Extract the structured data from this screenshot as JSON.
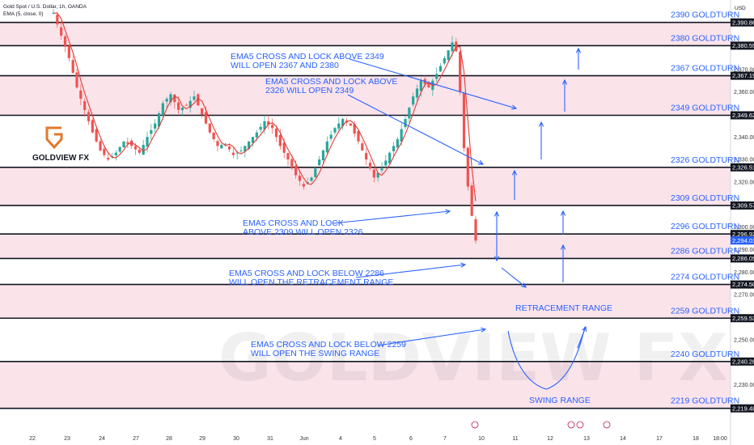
{
  "header": {
    "title": "Gold Spot / U.S. Dollar, 1h, OANDA",
    "indicator": "EMA (5, close, 0)",
    "currency": "USD"
  },
  "logo": {
    "text": "GOLDVIEW FX"
  },
  "watermark": "GOLDVIEW FX",
  "colors": {
    "accent": "#2962ff",
    "zone": "#fbe3ea",
    "ema": "#e53935",
    "candle_up": "#26a69a",
    "candle_down": "#ef5350"
  },
  "chart_data": {
    "type": "candlestick",
    "symbol": "XAUUSD",
    "timeframe": "1h",
    "ylim": [
      2214,
      2394
    ],
    "y_ticks": [
      2230,
      2240,
      2250,
      2260,
      2270,
      2280,
      2290,
      2300,
      2320,
      2330,
      2340,
      2360,
      2370
    ],
    "x_ticks": [
      "22",
      "23",
      "24",
      "27",
      "28",
      "29",
      "30",
      "31",
      "Jun",
      "4",
      "5",
      "6",
      "7",
      "10",
      "11",
      "12",
      "13",
      "14",
      "17",
      "18",
      "18:00"
    ],
    "levels": [
      {
        "price": 2390.864,
        "label": "2390 GOLDTURN",
        "badge": "2,390.864"
      },
      {
        "price": 2380.559,
        "label": "2380 GOLDTURN",
        "badge": "2,380.559"
      },
      {
        "price": 2367.195,
        "label": "2367 GOLDTURN",
        "badge": "2,367.195"
      },
      {
        "price": 2349.627,
        "label": "2349 GOLDTURN",
        "badge": "2,349.627"
      },
      {
        "price": 2326.511,
        "label": "2326 GOLDTURN",
        "badge": "2,326.511"
      },
      {
        "price": 2309.577,
        "label": "2309 GOLDTURN",
        "badge": "2,309.577"
      },
      {
        "price": 2296.922,
        "label": "2296 GOLDTURN",
        "badge": "2,296.922"
      },
      {
        "price": 2286.058,
        "label": "2286 GOLDTURN",
        "badge": "2,286.058"
      },
      {
        "price": 2274.5,
        "label": "2274 GOLDTURN",
        "badge": "2,274.500"
      },
      {
        "price": 2259.537,
        "label": "2259 GOLDTURN",
        "badge": "2,259.537"
      },
      {
        "price": 2240.288,
        "label": "2240 GOLDTURN",
        "badge": "2,240.288"
      },
      {
        "price": 2219.489,
        "label": "2219 GOLDTURN",
        "badge": "2,219.489"
      }
    ],
    "current_price": {
      "value": 2294.015,
      "badge": "2,294.015"
    },
    "price_path": [
      [
        0,
        2395
      ],
      [
        2,
        2385
      ],
      [
        4,
        2375
      ],
      [
        6,
        2362
      ],
      [
        8,
        2352
      ],
      [
        10,
        2342
      ],
      [
        12,
        2334
      ],
      [
        14,
        2330
      ],
      [
        16,
        2333
      ],
      [
        18,
        2338
      ],
      [
        20,
        2336
      ],
      [
        22,
        2333
      ],
      [
        24,
        2340
      ],
      [
        26,
        2346
      ],
      [
        28,
        2355
      ],
      [
        30,
        2359
      ],
      [
        32,
        2352
      ],
      [
        34,
        2354
      ],
      [
        36,
        2358
      ],
      [
        38,
        2350
      ],
      [
        40,
        2342
      ],
      [
        42,
        2336
      ],
      [
        44,
        2337
      ],
      [
        46,
        2332
      ],
      [
        48,
        2334
      ],
      [
        50,
        2338
      ],
      [
        52,
        2342
      ],
      [
        54,
        2347
      ],
      [
        56,
        2344
      ],
      [
        58,
        2336
      ],
      [
        60,
        2330
      ],
      [
        62,
        2323
      ],
      [
        64,
        2318
      ],
      [
        66,
        2322
      ],
      [
        68,
        2330
      ],
      [
        70,
        2338
      ],
      [
        72,
        2344
      ],
      [
        74,
        2348
      ],
      [
        76,
        2345
      ],
      [
        78,
        2338
      ],
      [
        80,
        2330
      ],
      [
        82,
        2322
      ],
      [
        84,
        2326
      ],
      [
        86,
        2333
      ],
      [
        88,
        2339
      ],
      [
        90,
        2348
      ],
      [
        92,
        2358
      ],
      [
        94,
        2365
      ],
      [
        96,
        2362
      ],
      [
        98,
        2368
      ],
      [
        100,
        2375
      ],
      [
        102,
        2382
      ],
      [
        103,
        2378
      ],
      [
        104,
        2360
      ],
      [
        105,
        2335
      ],
      [
        106,
        2318
      ],
      [
        107,
        2305
      ],
      [
        108,
        2294
      ]
    ],
    "annotations": [
      {
        "lines": [
          "EMA5 CROSS AND LOCK ABOVE 2349",
          "WILL OPEN 2367 AND 2380"
        ]
      },
      {
        "lines": [
          "EMA5 CROSS AND LOCK ABOVE",
          "2326 WILL OPEN 2349"
        ]
      },
      {
        "lines": [
          "EMA5 CROSS AND LOCK",
          "ABOVE 2309 WILL OPEN 2326"
        ]
      },
      {
        "lines": [
          "EMA5 CROSS AND LOCK BELOW 2286",
          "WILL OPEN THE RETRACEMENT RANGE"
        ]
      },
      {
        "lines": [
          "EMA5 CROSS AND LOCK BELOW 2259",
          "WILL OPEN THE SWING RANGE"
        ]
      }
    ],
    "range_labels": [
      "RETRACEMENT RANGE",
      "SWING RANGE"
    ]
  }
}
